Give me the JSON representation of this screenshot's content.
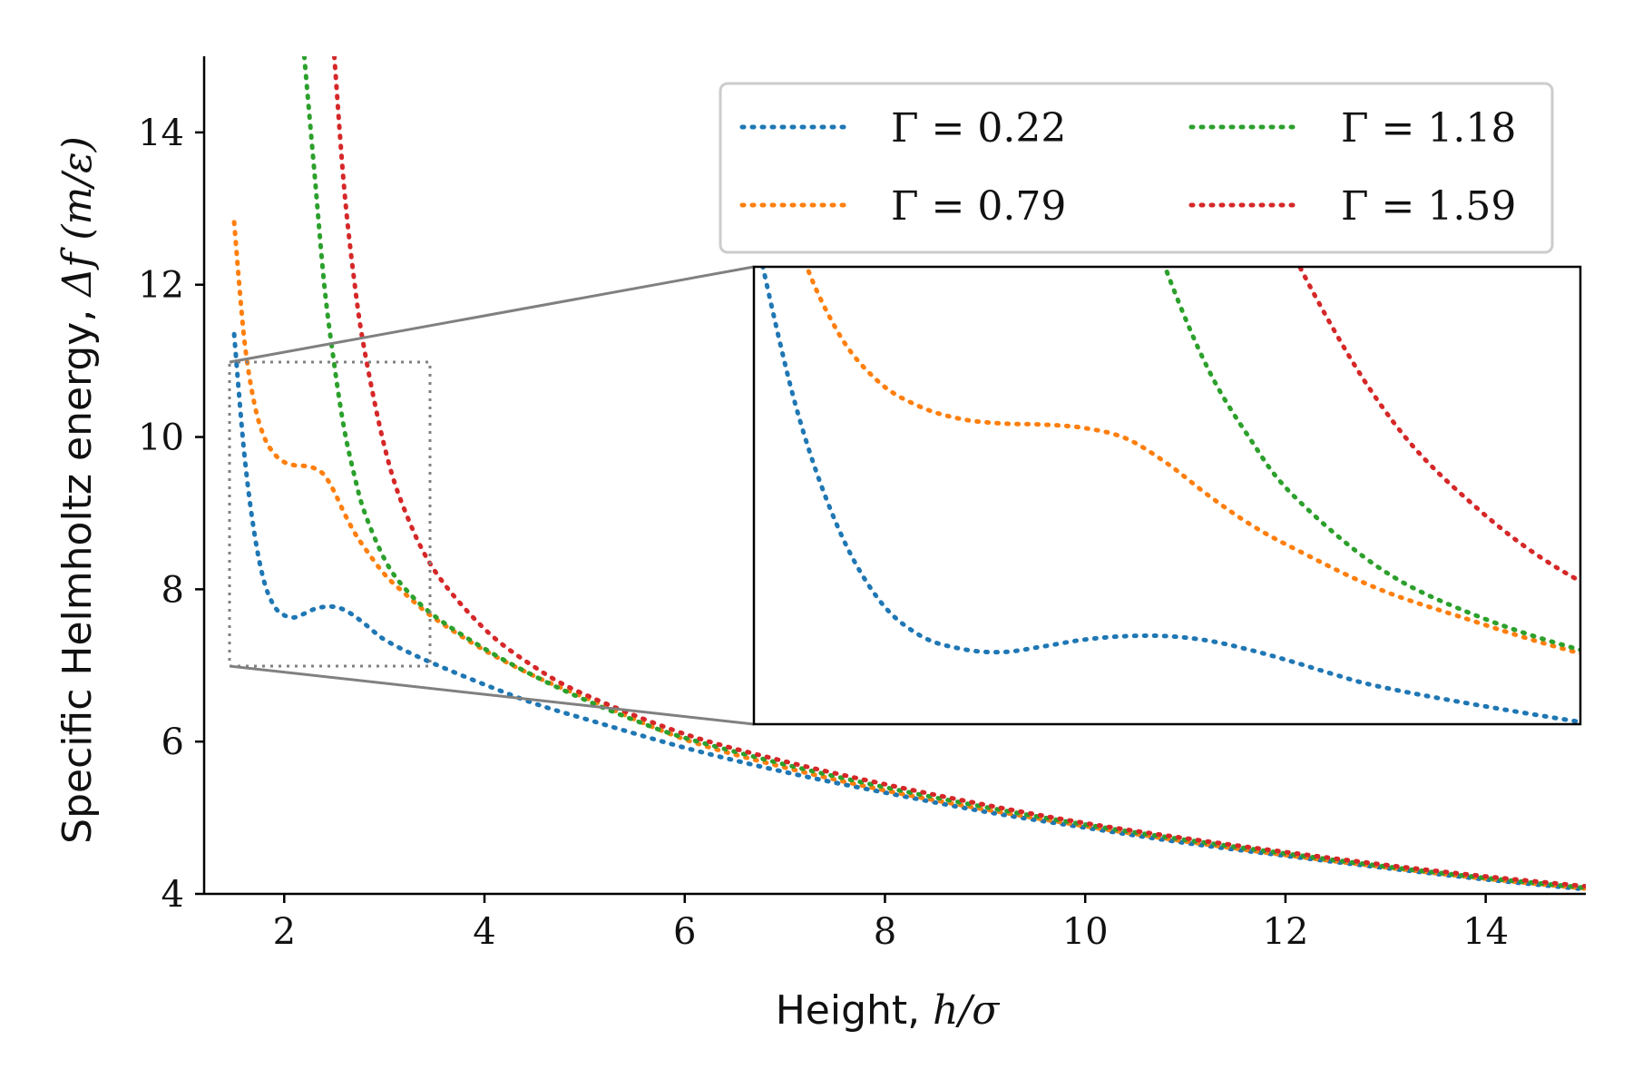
{
  "chart_data": {
    "type": "line",
    "xlabel_prefix": "Height, ",
    "xlabel_math": "h/σ",
    "ylabel_prefix": "Specific Helmholtz energy, ",
    "ylabel_math": "Δf (m/ε)",
    "xlim": [
      1.2,
      15
    ],
    "ylim": [
      4,
      15
    ],
    "xticks": [
      2,
      4,
      6,
      8,
      10,
      12,
      14
    ],
    "yticks": [
      4,
      6,
      8,
      10,
      12,
      14
    ],
    "xtick_labels": [
      "2",
      "4",
      "6",
      "8",
      "10",
      "12",
      "14"
    ],
    "ytick_labels": [
      "4",
      "6",
      "8",
      "10",
      "12",
      "14"
    ],
    "legend_position": "top-right",
    "series": [
      {
        "name": "Γ = 0.22",
        "color": "#1f77b4",
        "x": [
          1.5,
          1.6,
          1.7,
          1.8,
          1.9,
          2.0,
          2.1,
          2.2,
          2.3,
          2.4,
          2.5,
          2.6,
          2.7,
          2.8,
          2.9,
          3.0,
          3.2,
          3.5,
          4.0,
          4.5,
          5.0,
          6.0,
          7.0,
          8.0,
          9.0,
          10.0,
          11.0,
          12.0,
          13.0,
          14.0,
          15.0
        ],
        "y": [
          11.35,
          9.8,
          8.75,
          8.1,
          7.78,
          7.66,
          7.63,
          7.68,
          7.74,
          7.77,
          7.77,
          7.73,
          7.65,
          7.55,
          7.44,
          7.34,
          7.2,
          7.02,
          6.75,
          6.5,
          6.3,
          5.92,
          5.6,
          5.33,
          5.08,
          4.87,
          4.67,
          4.5,
          4.34,
          4.19,
          4.06
        ]
      },
      {
        "name": "Γ = 0.79",
        "color": "#ff7f0e",
        "x": [
          1.5,
          1.6,
          1.7,
          1.8,
          1.9,
          2.0,
          2.1,
          2.2,
          2.3,
          2.4,
          2.5,
          2.6,
          2.7,
          2.8,
          3.0,
          3.2,
          3.5,
          4.0,
          4.5,
          5.0,
          6.0,
          7.0,
          8.0,
          9.0,
          10.0,
          11.0,
          12.0,
          13.0,
          14.0,
          15.0
        ],
        "y": [
          12.82,
          11.3,
          10.45,
          10.0,
          9.78,
          9.67,
          9.63,
          9.62,
          9.59,
          9.5,
          9.28,
          9.0,
          8.75,
          8.55,
          8.2,
          7.95,
          7.62,
          7.2,
          6.86,
          6.58,
          6.03,
          5.66,
          5.36,
          5.11,
          4.89,
          4.69,
          4.51,
          4.35,
          4.2,
          4.07
        ]
      },
      {
        "name": "Γ = 1.18",
        "color": "#2ca02c",
        "x": [
          2.2,
          2.3,
          2.4,
          2.5,
          2.6,
          2.7,
          2.8,
          3.0,
          3.2,
          3.5,
          4.0,
          4.5,
          5.0,
          5.5,
          6.0,
          7.0,
          8.0,
          9.0,
          10.0,
          11.0,
          12.0,
          13.0,
          14.0,
          15.0
        ],
        "y": [
          15.0,
          13.5,
          12.0,
          10.95,
          10.1,
          9.5,
          9.02,
          8.4,
          8.02,
          7.65,
          7.22,
          6.86,
          6.55,
          6.28,
          6.05,
          5.7,
          5.4,
          5.14,
          4.91,
          4.71,
          4.53,
          4.36,
          4.21,
          4.08
        ]
      },
      {
        "name": "Γ = 1.59",
        "color": "#d62728",
        "x": [
          2.5,
          2.6,
          2.7,
          2.8,
          3.0,
          3.2,
          3.5,
          4.0,
          4.5,
          5.0,
          6.0,
          7.0,
          8.0,
          9.0,
          10.0,
          11.0,
          12.0,
          13.0,
          14.0,
          15.0
        ],
        "y": [
          15.0,
          13.25,
          12.05,
          11.15,
          9.88,
          9.05,
          8.25,
          7.48,
          6.98,
          6.62,
          6.1,
          5.74,
          5.44,
          5.17,
          4.93,
          4.73,
          4.55,
          4.38,
          4.23,
          4.1
        ]
      }
    ],
    "inset": {
      "xlim": [
        1.5,
        3.5
      ],
      "ylim": [
        7,
        11
      ],
      "source_region": "dotted-gray-rectangle",
      "placement": "center-right"
    }
  },
  "legend": {
    "entries": [
      {
        "label": "Γ = 0.22",
        "color": "#1f77b4"
      },
      {
        "label": "Γ = 0.79",
        "color": "#ff7f0e"
      },
      {
        "label": "Γ = 1.18",
        "color": "#2ca02c"
      },
      {
        "label": "Γ = 1.59",
        "color": "#d62728"
      }
    ]
  }
}
